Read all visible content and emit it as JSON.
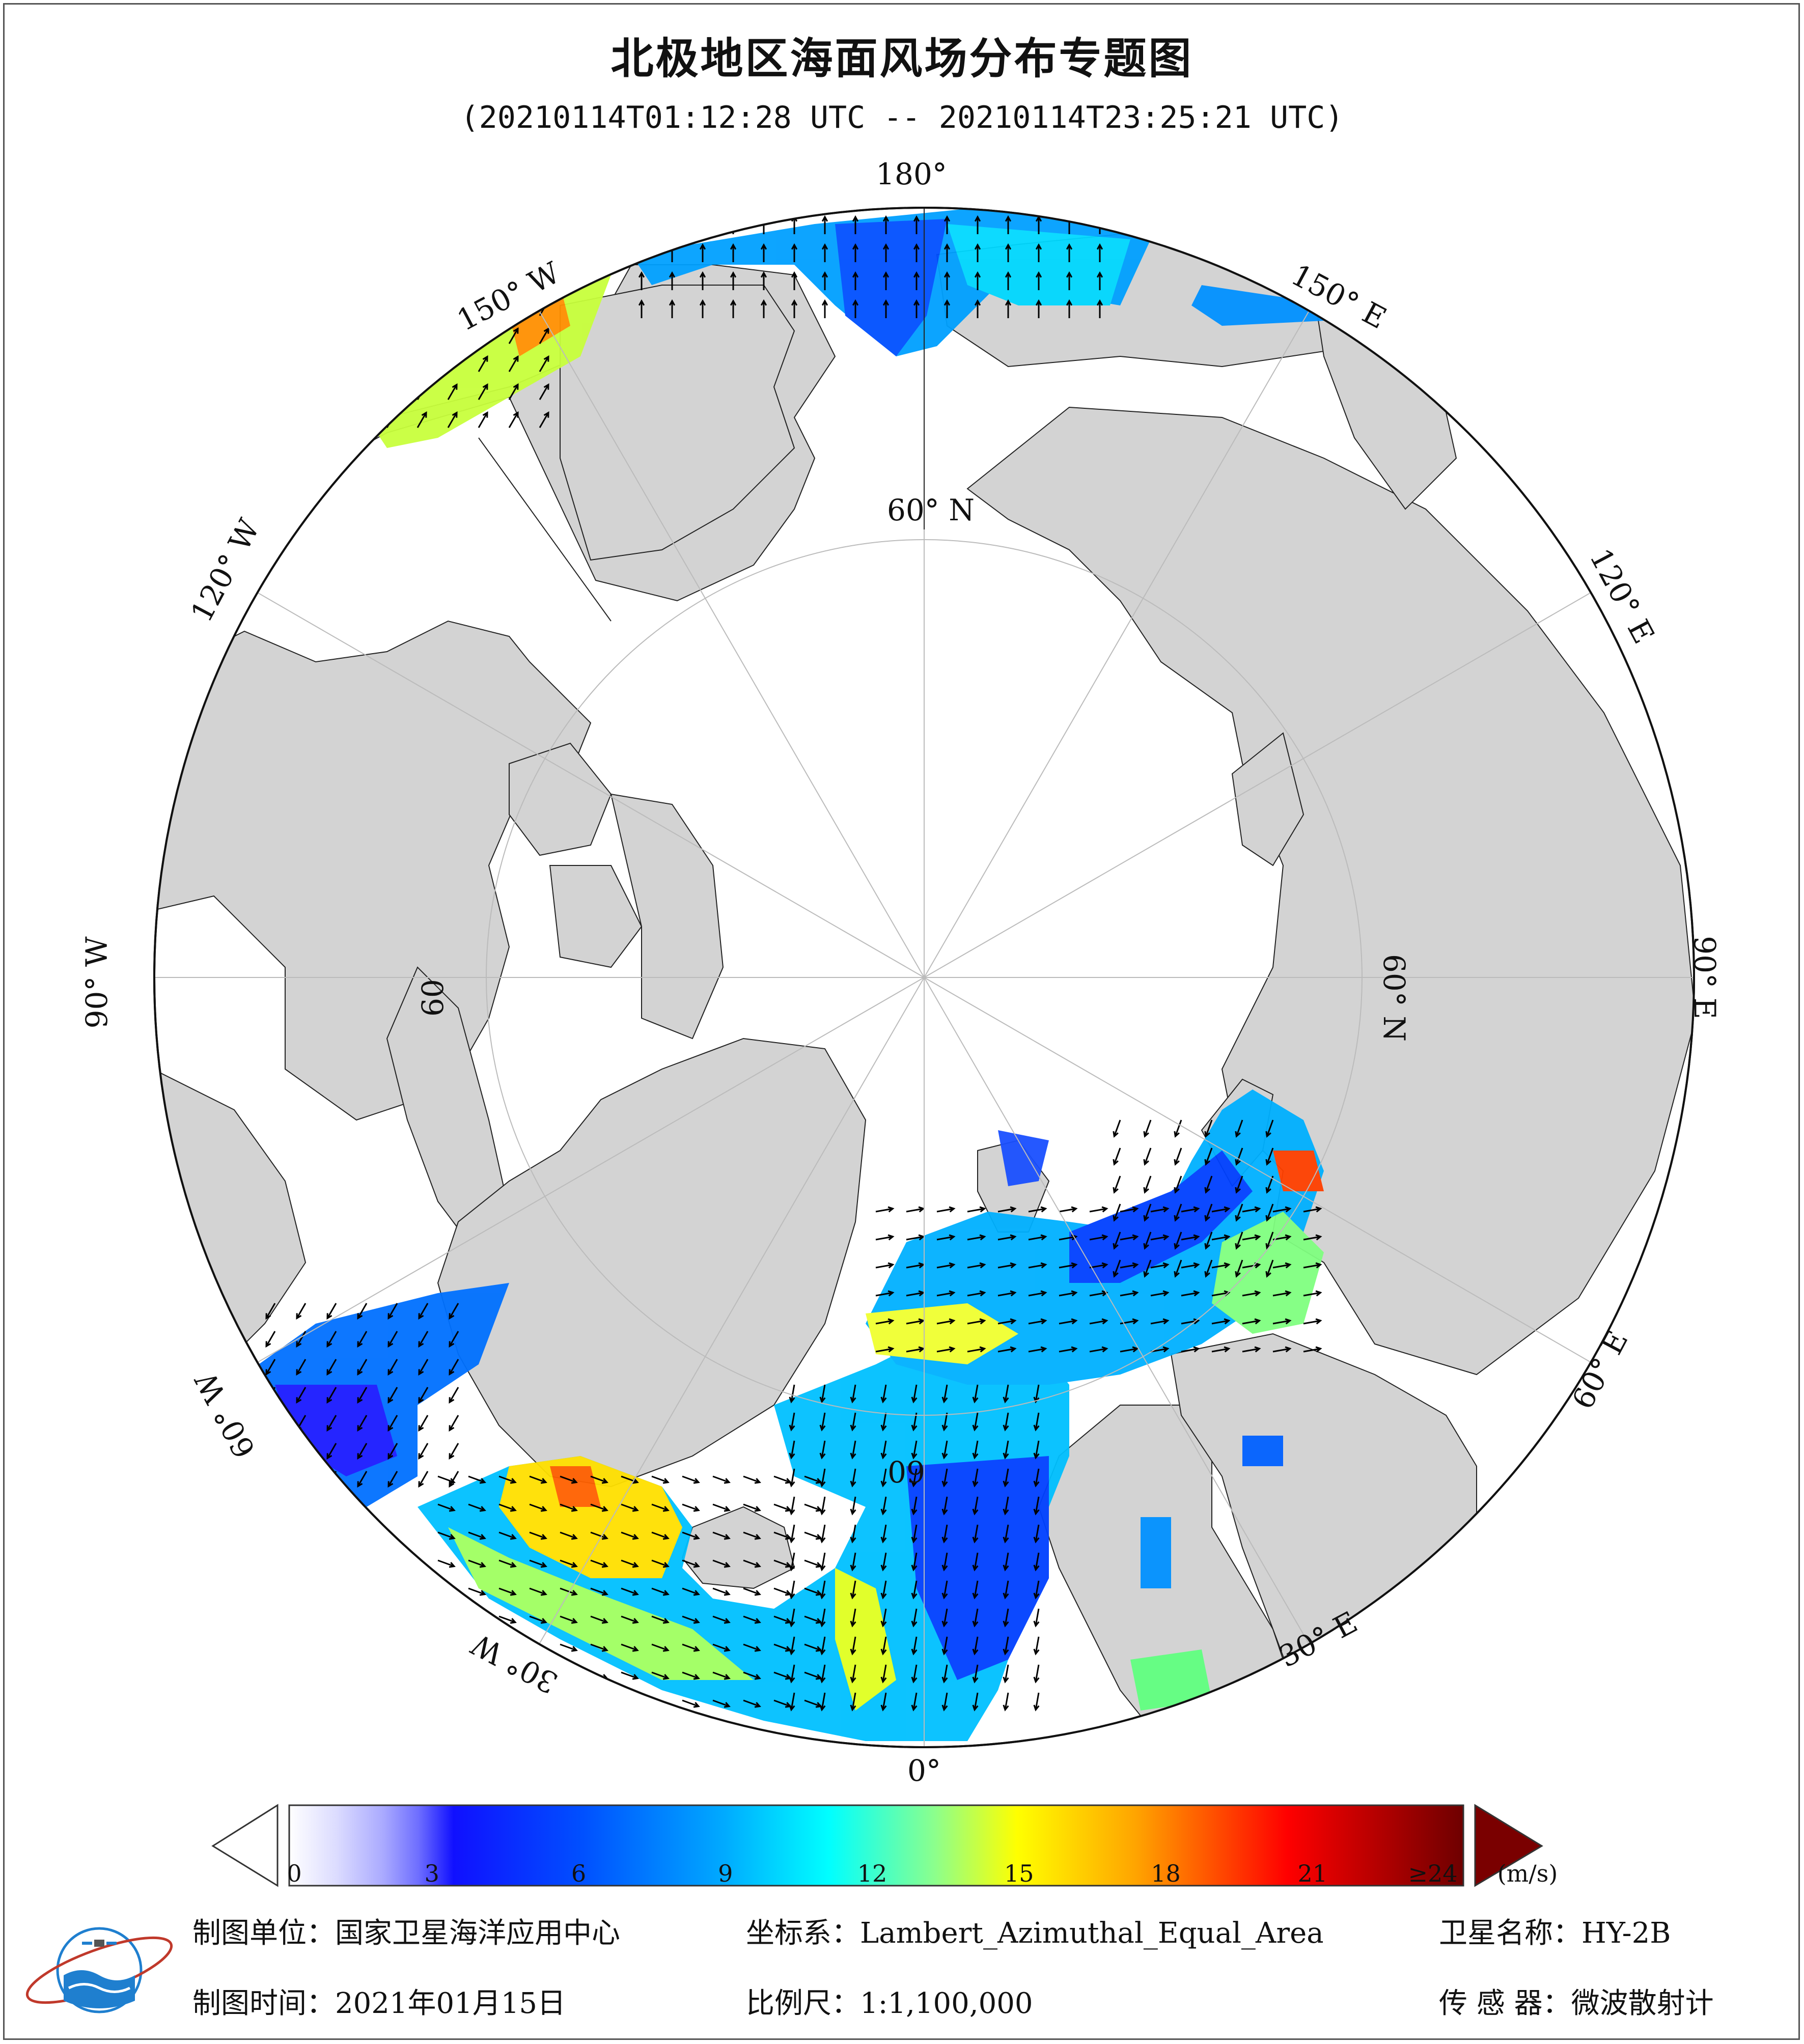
{
  "title": "北极地区海面风场分布专题图",
  "subtitle": "(20210114T01:12:28 UTC -- 20210114T23:25:21 UTC)",
  "graticule_labels": {
    "lon_180": "180°",
    "lon_150w": "150° W",
    "lon_150e": "150° E",
    "lon_120w": "120° W",
    "lon_120e": "120° E",
    "lon_90w": "90° W",
    "lon_90e": "90° E",
    "lon_60w": "60° W",
    "lon_60e": "60° E",
    "lon_30w": "30° W",
    "lon_30e": "30° E",
    "lon_0": "0°",
    "lat_60n_top": "60° N",
    "lat_60n_right": "60° N",
    "lat_60_left": "60",
    "lat_60_bottom": "60"
  },
  "colorbar": {
    "ticks": [
      "0",
      "3",
      "6",
      "9",
      "12",
      "15",
      "18",
      "21",
      "≥24"
    ],
    "unit": "(m/s)",
    "min": 0,
    "max": 24,
    "colors": [
      "#ffffff",
      "#dcdcff",
      "#c3c3ff",
      "#aaaaff",
      "#8c8cff",
      "#6e6eff",
      "#0000ff",
      "#0028ff",
      "#0064ff",
      "#0096ff",
      "#00c8ff",
      "#00ffff",
      "#3cffc8",
      "#8cff8c",
      "#c8ff3c",
      "#ffff00",
      "#ffdc00",
      "#ffb400",
      "#ff8c00",
      "#ff5000",
      "#ff0000",
      "#dc0000",
      "#b40000",
      "#8c0000",
      "#6e0000"
    ]
  },
  "footer": {
    "producer": "制图单位：国家卫星海洋应用中心",
    "coord_system": "坐标系：Lambert_Azimuthal_Equal_Area",
    "satellite": "卫星名称：HY-2B",
    "map_date": "制图时间：2021年01月15日",
    "scale": "比例尺：1:1,100,000",
    "sensor": "传 感 器：微波散射计"
  },
  "colors": {
    "land": "#d3d3d3",
    "ice_ocean": "#ffffff",
    "graticule": "#bbbbbb",
    "arrow": "#000000"
  }
}
